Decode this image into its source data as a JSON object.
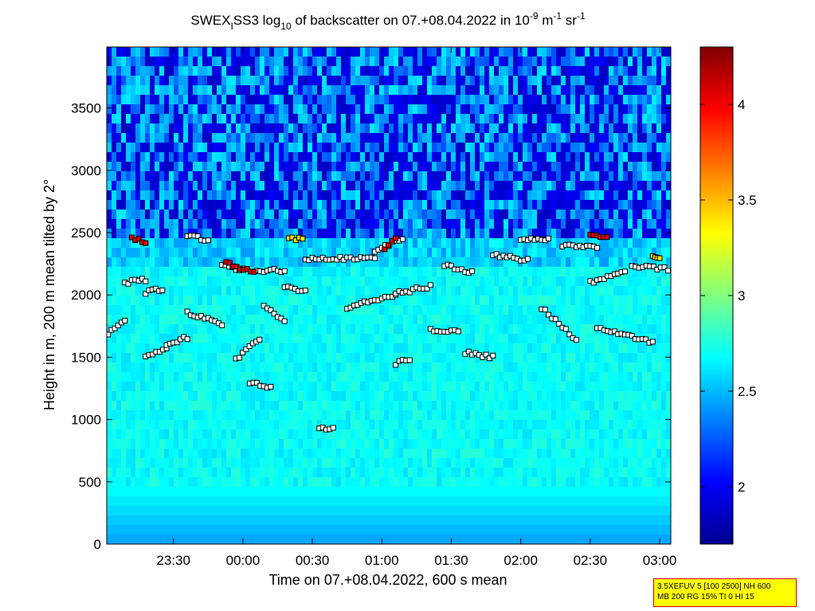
{
  "chart_data": {
    "type": "heatmap",
    "title": {
      "prefix": "SWEX",
      "sub1": "I",
      "mid": "SS3 log",
      "sub2": "10",
      "rest": " of backscatter on 07.+08.04.2022 in 10",
      "sup1": "-9",
      "m": " m",
      "sup2": "-1",
      "sr": " sr",
      "sup3": "-1"
    },
    "xlabel": "Time on 07.+08.04.2022, 600 s mean",
    "ylabel": "Height in m, 200 m mean tilted by 2°",
    "x_ticks": [
      "23:30",
      "00:00",
      "00:30",
      "01:00",
      "01:30",
      "02:00",
      "02:30",
      "03:00"
    ],
    "x_tick_hours": [
      23.5,
      24.0,
      24.5,
      25.0,
      25.5,
      26.0,
      26.5,
      27.0
    ],
    "xlim_hours": [
      23.02,
      27.08
    ],
    "y_ticks": [
      0,
      500,
      1000,
      1500,
      2000,
      2500,
      3000,
      3500
    ],
    "ylim": [
      0,
      3990
    ],
    "colorbar": {
      "ticks": [
        2,
        2.5,
        3,
        3.5,
        4
      ],
      "tick_labels": [
        "2",
        "2.5",
        "3",
        "3.5",
        "4"
      ],
      "range": [
        1.7,
        4.3
      ],
      "colormap": "jet"
    },
    "markers": {
      "description_style": "squares",
      "segments": [
        {
          "t0": 23.03,
          "t1": 23.15,
          "h0": 1680,
          "h1": 1800
        },
        {
          "t0": 23.15,
          "t1": 23.3,
          "h0": 2100,
          "h1": 2120
        },
        {
          "t0": 23.3,
          "t1": 23.42,
          "h0": 2020,
          "h1": 2050
        },
        {
          "t0": 23.3,
          "t1": 23.45,
          "h0": 1500,
          "h1": 1560
        },
        {
          "t0": 23.45,
          "t1": 23.6,
          "h0": 1600,
          "h1": 1660
        },
        {
          "t0": 23.6,
          "t1": 23.75,
          "h0": 2480,
          "h1": 2440
        },
        {
          "t0": 23.6,
          "t1": 23.85,
          "h0": 1860,
          "h1": 1760
        },
        {
          "t0": 23.85,
          "t1": 24.0,
          "h0": 2240,
          "h1": 2200
        },
        {
          "t0": 23.95,
          "t1": 24.12,
          "h0": 1480,
          "h1": 1650
        },
        {
          "t0": 24.05,
          "t1": 24.2,
          "h0": 1300,
          "h1": 1250
        },
        {
          "t0": 24.1,
          "t1": 24.3,
          "h0": 2200,
          "h1": 2190
        },
        {
          "t0": 24.15,
          "t1": 24.3,
          "h0": 1900,
          "h1": 1800
        },
        {
          "t0": 24.3,
          "t1": 24.45,
          "h0": 2060,
          "h1": 2040
        },
        {
          "t0": 24.45,
          "t1": 24.95,
          "h0": 2290,
          "h1": 2300
        },
        {
          "t0": 24.55,
          "t1": 24.65,
          "h0": 920,
          "h1": 930
        },
        {
          "t0": 24.75,
          "t1": 25.1,
          "h0": 1900,
          "h1": 2000
        },
        {
          "t0": 24.95,
          "t1": 25.15,
          "h0": 2350,
          "h1": 2450
        },
        {
          "t0": 25.1,
          "t1": 25.35,
          "h0": 2010,
          "h1": 2070
        },
        {
          "t0": 25.1,
          "t1": 25.2,
          "h0": 1450,
          "h1": 1480
        },
        {
          "t0": 25.35,
          "t1": 25.55,
          "h0": 1720,
          "h1": 1710
        },
        {
          "t0": 25.45,
          "t1": 25.65,
          "h0": 2240,
          "h1": 2180
        },
        {
          "t0": 25.6,
          "t1": 25.8,
          "h0": 1540,
          "h1": 1500
        },
        {
          "t0": 25.8,
          "t1": 26.05,
          "h0": 2320,
          "h1": 2280
        },
        {
          "t0": 26.0,
          "t1": 26.2,
          "h0": 2440,
          "h1": 2450
        },
        {
          "t0": 26.15,
          "t1": 26.4,
          "h0": 1900,
          "h1": 1640
        },
        {
          "t0": 26.3,
          "t1": 26.55,
          "h0": 2400,
          "h1": 2390
        },
        {
          "t0": 26.5,
          "t1": 26.75,
          "h0": 2100,
          "h1": 2200
        },
        {
          "t0": 26.55,
          "t1": 26.95,
          "h0": 1740,
          "h1": 1620
        },
        {
          "t0": 26.8,
          "t1": 27.06,
          "h0": 2230,
          "h1": 2210
        }
      ],
      "highlighted_segments": [
        {
          "t0": 23.2,
          "t1": 23.3,
          "h0": 2460,
          "h1": 2420
        },
        {
          "t0": 23.88,
          "t1": 24.08,
          "h0": 2260,
          "h1": 2180
        },
        {
          "t0": 24.33,
          "t1": 24.43,
          "h0": 2460,
          "h1": 2440
        },
        {
          "t0": 25.02,
          "t1": 25.1,
          "h0": 2380,
          "h1": 2460
        },
        {
          "t0": 26.5,
          "t1": 26.62,
          "h0": 2470,
          "h1": 2460
        },
        {
          "t0": 26.95,
          "t1": 27.0,
          "h0": 2300,
          "h1": 2300
        }
      ]
    }
  },
  "info_box": {
    "line1": "3.5XEFUV 5 [100 2500] NH 600",
    "line2": "MB 200 RG 15% TI 0 HI 15"
  },
  "colors": {
    "marker_fill": "#ffffff",
    "marker_edge": "#000000",
    "info_bg": "#ffff00",
    "info_border": "#d40000"
  }
}
